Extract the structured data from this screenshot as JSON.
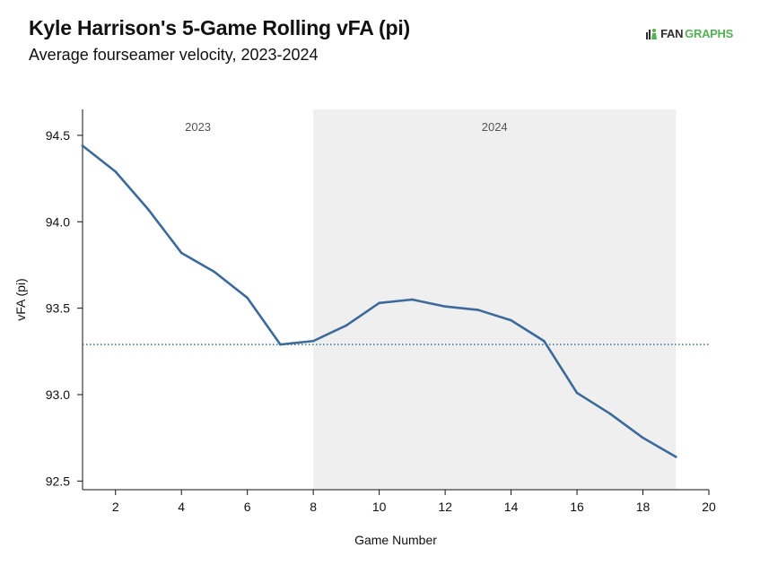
{
  "header": {
    "title": "Kyle Harrison's 5-Game Rolling vFA (pi)",
    "subtitle": "Average fourseamer velocity, 2023-2024",
    "logo_fan": "FAN",
    "logo_graphs": "GRAPHS"
  },
  "chart_data": {
    "type": "line",
    "title": "Kyle Harrison's 5-Game Rolling vFA (pi)",
    "subtitle": "Average fourseamer velocity, 2023-2024",
    "xlabel": "Game Number",
    "ylabel": "vFA (pi)",
    "xlim": [
      1,
      20
    ],
    "ylim": [
      92.45,
      94.65
    ],
    "xticks": [
      2,
      4,
      6,
      8,
      10,
      12,
      14,
      16,
      18,
      20
    ],
    "yticks": [
      92.5,
      93.0,
      93.5,
      94.0,
      94.5
    ],
    "ytick_labels": [
      "92.5",
      "93.0",
      "93.5",
      "94.0",
      "94.5"
    ],
    "grid": false,
    "series": [
      {
        "color": "#3c6a9a",
        "x": [
          1,
          2,
          3,
          4,
          5,
          6,
          7,
          8,
          9,
          10,
          11,
          12,
          13,
          14,
          15,
          16,
          17,
          18,
          19
        ],
        "y": [
          94.44,
          94.29,
          94.07,
          93.82,
          93.71,
          93.56,
          93.29,
          93.31,
          93.4,
          93.53,
          93.55,
          93.51,
          93.49,
          93.43,
          93.31,
          93.01,
          92.89,
          92.75,
          92.64
        ]
      }
    ],
    "reference_line": {
      "y": 93.29,
      "style": "dotted",
      "color": "#3c6a9a"
    },
    "seasons": [
      {
        "label": "2023",
        "x_start": 1,
        "x_end": 8,
        "shaded": false
      },
      {
        "label": "2024",
        "x_start": 8,
        "x_end": 19,
        "shaded": true,
        "color": "#efefef"
      }
    ]
  }
}
